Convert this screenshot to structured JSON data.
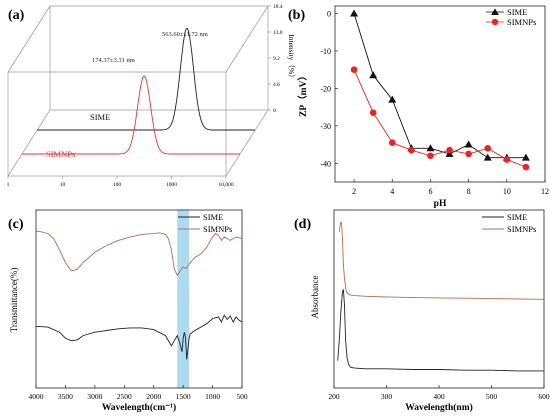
{
  "chart_data": [
    {
      "id": "a",
      "panel_label": "(a)",
      "type": "line",
      "view": "3d-waterfall",
      "xlabel": "",
      "ylabel": "Intensity（%）",
      "x_ticks": [
        "1",
        "10",
        "100",
        "1000",
        "10,000"
      ],
      "z_ticks": [
        "0",
        "4.6",
        "9.2",
        "13.8",
        "18.4"
      ],
      "zlim": [
        0,
        18.4
      ],
      "series": [
        {
          "name": "SIME",
          "label": "SIME",
          "color": "#222222",
          "peak_x": 563.6,
          "peak_y": 18.0,
          "sigma_log10": 0.12,
          "annotation": "563.60±11.72 nm"
        },
        {
          "name": "SIMNPs",
          "label": "SIMNPs",
          "color": "#ee3333",
          "peak_x": 174.37,
          "peak_y": 13.8,
          "sigma_log10": 0.12,
          "annotation": "174.37±3.31 nm"
        }
      ]
    },
    {
      "id": "b",
      "panel_label": "(b)",
      "type": "line",
      "xlabel": "pH",
      "ylabel": "ZP（mV）",
      "xlim": [
        1,
        12
      ],
      "ylim": [
        -45,
        2
      ],
      "x_ticks": [
        2,
        4,
        6,
        8,
        10,
        12
      ],
      "y_ticks": [
        0,
        -10,
        -20,
        -30,
        -40
      ],
      "legend_position": "top-right",
      "series": [
        {
          "name": "SIME",
          "marker": "triangle",
          "color": "#111111",
          "x": [
            2,
            3,
            4,
            5,
            6,
            7,
            8,
            9,
            10,
            11
          ],
          "y": [
            0,
            -16.5,
            -23,
            -36,
            -36,
            -37.5,
            -35,
            -38.5,
            -38.5,
            -38.5
          ]
        },
        {
          "name": "SIMNPs",
          "marker": "circle",
          "color": "#ee2222",
          "x": [
            2,
            3,
            4,
            5,
            6,
            7,
            8,
            9,
            10,
            11
          ],
          "y": [
            -15,
            -26.5,
            -34.5,
            -36.5,
            -38,
            -36.5,
            -37.5,
            -36,
            -39,
            -41
          ]
        }
      ]
    },
    {
      "id": "c",
      "panel_label": "(c)",
      "type": "line",
      "xlabel": "Wavelength(cm⁻¹)",
      "ylabel": "Transmittance(%)",
      "xlim": [
        4000,
        500
      ],
      "x_ticks": [
        4000,
        3500,
        3000,
        2500,
        2000,
        1500,
        1000,
        500
      ],
      "highlight_band": [
        1600,
        1400
      ],
      "highlight_color": "#9ed4ee",
      "legend_position": "top-right",
      "series": [
        {
          "name": "SIME",
          "color": "#222222",
          "x": [
            4000,
            3800,
            3600,
            3500,
            3400,
            3300,
            3200,
            3000,
            2900,
            2800,
            2600,
            2400,
            2200,
            2000,
            1800,
            1700,
            1650,
            1600,
            1560,
            1520,
            1500,
            1480,
            1460,
            1440,
            1420,
            1400,
            1380,
            1300,
            1200,
            1100,
            1000,
            900,
            850,
            800,
            750,
            700,
            650,
            600,
            550,
            500
          ],
          "y": [
            75,
            74,
            68,
            61,
            58,
            59,
            64,
            68,
            69,
            70,
            72,
            73,
            73,
            71,
            64,
            52,
            58,
            64,
            56,
            45,
            60,
            68,
            62,
            36,
            48,
            60,
            66,
            70,
            74,
            78,
            84,
            86,
            80,
            88,
            83,
            87,
            80,
            86,
            82,
            80
          ]
        },
        {
          "name": "SIMNPs",
          "color": "#c06a48",
          "x": [
            4000,
            3900,
            3800,
            3700,
            3600,
            3500,
            3400,
            3300,
            3200,
            3000,
            2900,
            2800,
            2600,
            2400,
            2200,
            2000,
            1900,
            1800,
            1750,
            1700,
            1650,
            1600,
            1550,
            1500,
            1450,
            1400,
            1350,
            1300,
            1200,
            1100,
            1000,
            950,
            900,
            850,
            800,
            700,
            600,
            500
          ],
          "y": [
            187,
            186,
            184,
            178,
            165,
            150,
            140,
            142,
            150,
            162,
            166,
            170,
            176,
            180,
            183,
            184,
            185,
            183,
            178,
            165,
            142,
            135,
            140,
            145,
            143,
            148,
            152,
            156,
            160,
            168,
            180,
            184,
            182,
            176,
            180,
            176,
            180,
            178
          ]
        }
      ]
    },
    {
      "id": "d",
      "panel_label": "(d)",
      "type": "line",
      "xlabel": "Wavelength(nm)",
      "ylabel": "Absorbance",
      "xlim": [
        200,
        600
      ],
      "ylim": [
        0,
        1.3
      ],
      "x_ticks": [
        200,
        300,
        400,
        500,
        600
      ],
      "legend_position": "top-right",
      "series": [
        {
          "name": "SIME",
          "color": "#222222",
          "x": [
            207,
            210,
            213,
            216,
            218,
            220,
            222,
            225,
            228,
            232,
            240,
            260,
            300,
            350,
            400,
            450,
            500,
            550,
            600
          ],
          "y": [
            0.2,
            0.35,
            0.55,
            0.7,
            0.72,
            0.6,
            0.35,
            0.22,
            0.17,
            0.15,
            0.145,
            0.14,
            0.14,
            0.135,
            0.135,
            0.13,
            0.13,
            0.125,
            0.125
          ]
        },
        {
          "name": "SIMNPs",
          "color": "#c06a48",
          "x": [
            210,
            212,
            214,
            216,
            218,
            220,
            223,
            226,
            230,
            240,
            260,
            300,
            350,
            400,
            450,
            500,
            550,
            600
          ],
          "y": [
            1.14,
            1.2,
            1.22,
            1.1,
            0.9,
            0.8,
            0.71,
            0.69,
            0.68,
            0.675,
            0.67,
            0.665,
            0.66,
            0.658,
            0.656,
            0.653,
            0.65,
            0.648
          ]
        }
      ]
    }
  ]
}
